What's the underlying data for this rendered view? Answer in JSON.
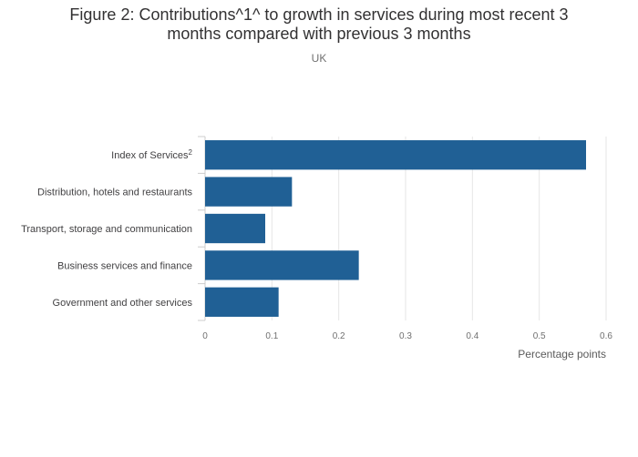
{
  "chart_data": {
    "type": "bar",
    "orientation": "horizontal",
    "title_line1": "Figure 2: Contributions^1^ to growth in services during most recent 3",
    "title_line2": "months compared with previous 3 months",
    "subtitle": "UK",
    "categories": [
      {
        "label": "Index of Services",
        "sup": "2"
      },
      {
        "label": "Distribution, hotels and restaurants",
        "sup": ""
      },
      {
        "label": "Transport, storage and communication",
        "sup": ""
      },
      {
        "label": "Business services and finance",
        "sup": ""
      },
      {
        "label": "Government and other services",
        "sup": ""
      }
    ],
    "values": [
      0.57,
      0.13,
      0.09,
      0.23,
      0.11
    ],
    "xlim": [
      0,
      0.6
    ],
    "xticks": [
      "0",
      "0.1",
      "0.2",
      "0.3",
      "0.4",
      "0.5",
      "0.6"
    ],
    "xlabel": "Percentage points",
    "ylabel": "",
    "grid": true,
    "bar_color": "#206095"
  }
}
